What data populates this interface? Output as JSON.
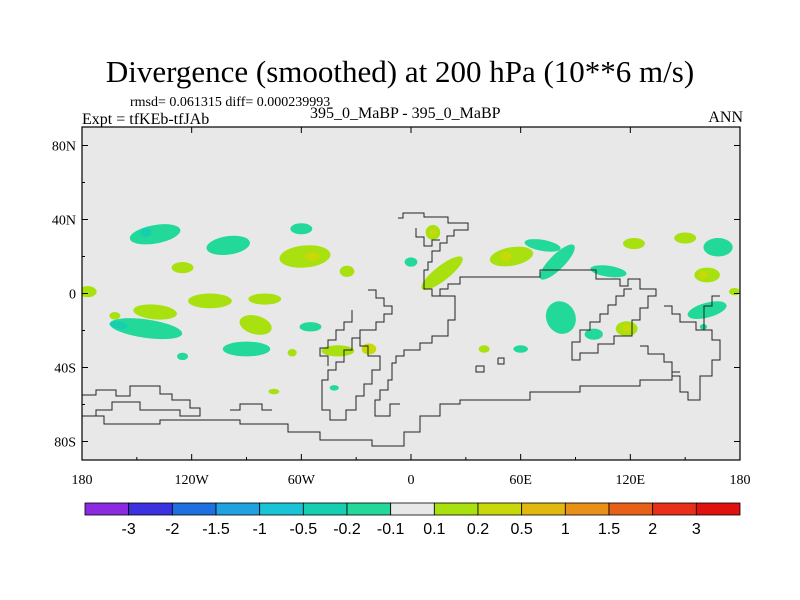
{
  "title": "Divergence (smoothed) at 200 hPa (10**6 m/s)",
  "stats_line": "rmsd= 0.061315 diff= 0.000239993",
  "experiment": "Expt = tfKEb-tfJAb",
  "case": "395_0_MaBP - 395_0_MaBP",
  "season": "ANN",
  "chart_data": {
    "type": "heatmap",
    "map_projection": "cylindrical equidistant",
    "xlim": [
      -180,
      180
    ],
    "ylim": [
      -90,
      90
    ],
    "x_ticks": [
      {
        "value": -180,
        "label": "180"
      },
      {
        "value": -120,
        "label": "120W"
      },
      {
        "value": -60,
        "label": "60W"
      },
      {
        "value": 0,
        "label": "0"
      },
      {
        "value": 60,
        "label": "60E"
      },
      {
        "value": 120,
        "label": "120E"
      },
      {
        "value": 180,
        "label": "180"
      }
    ],
    "y_ticks": [
      {
        "value": 80,
        "label": "80N"
      },
      {
        "value": 40,
        "label": "40N"
      },
      {
        "value": 0,
        "label": "0"
      },
      {
        "value": -40,
        "label": "40S"
      },
      {
        "value": -80,
        "label": "80S"
      }
    ],
    "colorbar": {
      "labels": [
        "-3",
        "-2",
        "-1.5",
        "-1",
        "-0.5",
        "-0.2",
        "-0.1",
        "0.1",
        "0.2",
        "0.5",
        "1",
        "1.5",
        "2",
        "3"
      ],
      "colors": [
        "#8a2be2",
        "#3a32e0",
        "#1e6fe0",
        "#1ea2e0",
        "#18c4d6",
        "#16cfb0",
        "#22d99a",
        "#e8e8e8",
        "#a8e010",
        "#c8d808",
        "#e0b810",
        "#e89018",
        "#e86018",
        "#e83018",
        "#e01010"
      ]
    },
    "background_color": "#e8e8e8",
    "regions": [
      {
        "lon": -140,
        "lat": 32,
        "rx": 14,
        "ry": 5,
        "level": -0.2,
        "rot": -10
      },
      {
        "lon": -145,
        "lat": 33,
        "rx": 3,
        "ry": 2.5,
        "level": -0.5,
        "rot": 0
      },
      {
        "lon": -100,
        "lat": 26,
        "rx": 12,
        "ry": 5,
        "level": -0.2,
        "rot": -8
      },
      {
        "lon": -60,
        "lat": 35,
        "rx": 6,
        "ry": 3,
        "level": -0.2,
        "rot": 0
      },
      {
        "lon": -125,
        "lat": 14,
        "rx": 6,
        "ry": 3,
        "level": 0.1,
        "rot": 0
      },
      {
        "lon": -58,
        "lat": 20,
        "rx": 14,
        "ry": 6,
        "level": 0.1,
        "rot": -5
      },
      {
        "lon": -54,
        "lat": 20,
        "rx": 4,
        "ry": 2.5,
        "level": 0.2,
        "rot": 0
      },
      {
        "lon": -35,
        "lat": 12,
        "rx": 4,
        "ry": 3,
        "level": 0.1,
        "rot": 0
      },
      {
        "lon": -177,
        "lat": 1,
        "rx": 5,
        "ry": 3,
        "level": 0.1,
        "rot": 0
      },
      {
        "lon": -140,
        "lat": -10,
        "rx": 12,
        "ry": 4,
        "level": 0.1,
        "rot": 5
      },
      {
        "lon": -110,
        "lat": -4,
        "rx": 12,
        "ry": 4,
        "level": 0.1,
        "rot": 0
      },
      {
        "lon": -80,
        "lat": -3,
        "rx": 9,
        "ry": 3,
        "level": 0.1,
        "rot": 0
      },
      {
        "lon": -85,
        "lat": -17,
        "rx": 9,
        "ry": 5,
        "level": 0.1,
        "rot": 15
      },
      {
        "lon": -145,
        "lat": -19,
        "rx": 20,
        "ry": 5,
        "level": -0.2,
        "rot": 8
      },
      {
        "lon": -160,
        "lat": -17,
        "rx": 5,
        "ry": 2,
        "level": -0.5,
        "rot": 8
      },
      {
        "lon": -90,
        "lat": -30,
        "rx": 13,
        "ry": 4,
        "level": -0.2,
        "rot": 0
      },
      {
        "lon": -55,
        "lat": -18,
        "rx": 6,
        "ry": 2.5,
        "level": -0.2,
        "rot": 0
      },
      {
        "lon": -40,
        "lat": -31,
        "rx": 9,
        "ry": 3,
        "level": 0.1,
        "rot": 0
      },
      {
        "lon": -23,
        "lat": -30,
        "rx": 4,
        "ry": 3,
        "level": 0.2,
        "rot": 0
      },
      {
        "lon": -65,
        "lat": -32,
        "rx": 2.5,
        "ry": 2,
        "level": 0.1,
        "rot": 0
      },
      {
        "lon": -125,
        "lat": -34,
        "rx": 3,
        "ry": 2,
        "level": -0.2,
        "rot": 0
      },
      {
        "lon": -42,
        "lat": -51,
        "rx": 2.5,
        "ry": 1.5,
        "level": -0.2,
        "rot": 0
      },
      {
        "lon": -75,
        "lat": -53,
        "rx": 3,
        "ry": 1.5,
        "level": 0.1,
        "rot": 0
      },
      {
        "lon": 12,
        "lat": 33,
        "rx": 4,
        "ry": 4,
        "level": 0.1,
        "rot": 0
      },
      {
        "lon": 12,
        "lat": 33,
        "rx": 2,
        "ry": 2,
        "level": 0.2,
        "rot": 0
      },
      {
        "lon": 0,
        "lat": 17,
        "rx": 3.5,
        "ry": 2.5,
        "level": -0.2,
        "rot": 0
      },
      {
        "lon": 17,
        "lat": 11,
        "rx": 14,
        "ry": 4,
        "level": 0.1,
        "rot": -38
      },
      {
        "lon": 55,
        "lat": 20,
        "rx": 12,
        "ry": 5,
        "level": 0.1,
        "rot": -10
      },
      {
        "lon": 52,
        "lat": 20,
        "rx": 3,
        "ry": 2.5,
        "level": 0.2,
        "rot": 0
      },
      {
        "lon": 80,
        "lat": 17,
        "rx": 13,
        "ry": 4,
        "level": -0.2,
        "rot": -45
      },
      {
        "lon": 72,
        "lat": 26,
        "rx": 10,
        "ry": 3,
        "level": -0.2,
        "rot": 10
      },
      {
        "lon": 108,
        "lat": 12,
        "rx": 10,
        "ry": 3,
        "level": -0.2,
        "rot": 8
      },
      {
        "lon": 122,
        "lat": 27,
        "rx": 6,
        "ry": 3,
        "level": 0.1,
        "rot": 0
      },
      {
        "lon": 150,
        "lat": 30,
        "rx": 6,
        "ry": 3,
        "level": 0.1,
        "rot": 0
      },
      {
        "lon": 168,
        "lat": 25,
        "rx": 8,
        "ry": 5,
        "level": -0.2,
        "rot": 0
      },
      {
        "lon": 162,
        "lat": 10,
        "rx": 7,
        "ry": 4,
        "level": 0.1,
        "rot": 0
      },
      {
        "lon": 160,
        "lat": 10,
        "rx": 2.5,
        "ry": 2,
        "level": 0.2,
        "rot": 0
      },
      {
        "lon": 177,
        "lat": 1,
        "rx": 3,
        "ry": 2,
        "level": 0.1,
        "rot": 0
      },
      {
        "lon": 162,
        "lat": -9,
        "rx": 11,
        "ry": 4,
        "level": -0.2,
        "rot": -15
      },
      {
        "lon": 160,
        "lat": -18,
        "rx": 2,
        "ry": 1.5,
        "level": -0.2,
        "rot": 0
      },
      {
        "lon": 82,
        "lat": -13,
        "rx": 8,
        "ry": 9,
        "level": -0.2,
        "rot": -25
      },
      {
        "lon": 118,
        "lat": -19,
        "rx": 6,
        "ry": 4,
        "level": 0.1,
        "rot": 0
      },
      {
        "lon": 118,
        "lat": -19,
        "rx": 2.5,
        "ry": 2,
        "level": 0.2,
        "rot": 0
      },
      {
        "lon": 100,
        "lat": -22,
        "rx": 5,
        "ry": 3,
        "level": -0.2,
        "rot": 0
      },
      {
        "lon": 60,
        "lat": -30,
        "rx": 4,
        "ry": 2,
        "level": -0.2,
        "rot": 0
      },
      {
        "lon": 40,
        "lat": -30,
        "rx": 3,
        "ry": 2,
        "level": 0.1,
        "rot": 0
      },
      {
        "lon": -162,
        "lat": -12,
        "rx": 3,
        "ry": 2,
        "level": 0.1,
        "rot": 0
      }
    ]
  }
}
